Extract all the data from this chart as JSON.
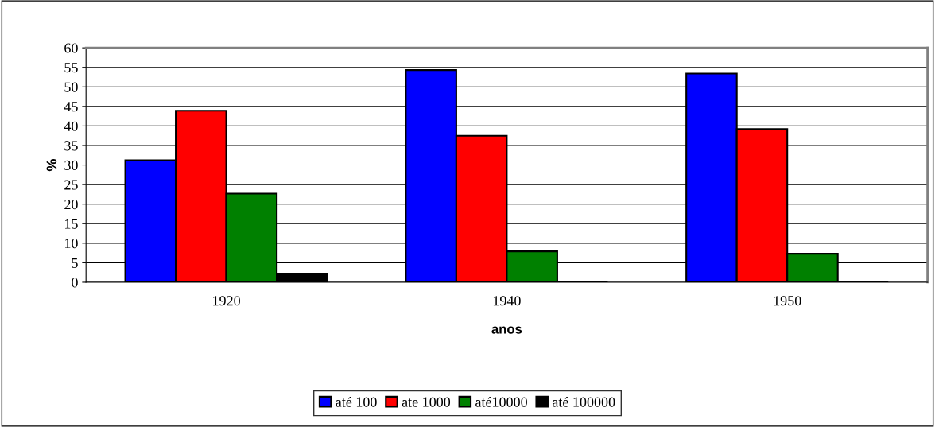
{
  "chart_data": {
    "type": "bar",
    "xlabel": "anos",
    "ylabel": "%",
    "categories": [
      "1920",
      "1940",
      "1950"
    ],
    "series": [
      {
        "name": "até 100",
        "color": "#0000ff",
        "values": [
          31.2,
          54.3,
          53.4
        ]
      },
      {
        "name": "ate 1000",
        "color": "#ff0000",
        "values": [
          43.9,
          37.5,
          39.2
        ]
      },
      {
        "name": "até10000",
        "color": "#008000",
        "values": [
          22.7,
          7.9,
          7.3
        ]
      },
      {
        "name": "até 100000",
        "color": "#000000",
        "values": [
          2.2,
          0,
          0
        ]
      }
    ],
    "ylim": [
      0,
      60
    ],
    "yticks": [
      0,
      5,
      10,
      15,
      20,
      25,
      30,
      35,
      40,
      45,
      50,
      55,
      60
    ],
    "grid": "y",
    "legend": "bottom"
  }
}
